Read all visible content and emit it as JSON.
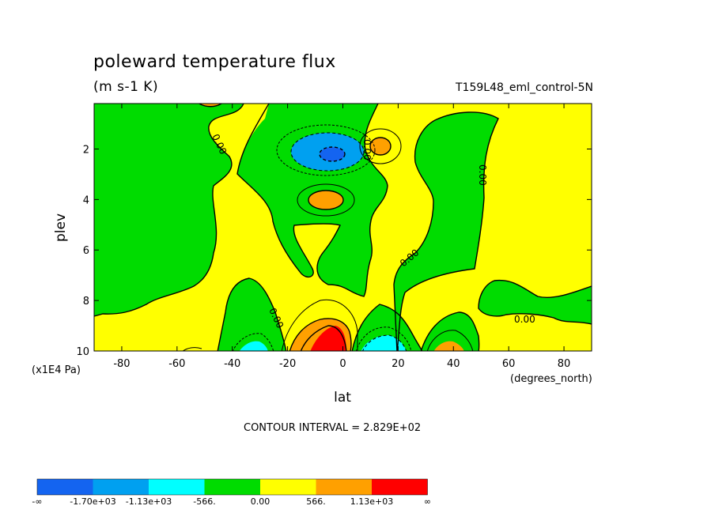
{
  "chart_data": {
    "type": "heatmap",
    "title": "poleward temperature flux",
    "units": "(m s-1 K)",
    "run_id": "T159L48_eml_control-5N",
    "xlabel": "lat",
    "x_units": "(degrees_north)",
    "ylabel": "plev",
    "y_units": "(x1E4 Pa)",
    "xlim": [
      -90,
      90
    ],
    "ylim": [
      10,
      0.2
    ],
    "x_ticks": [
      -80,
      -60,
      -40,
      -20,
      0,
      20,
      40,
      60,
      80
    ],
    "x_tick_labels": [
      "-80",
      "-60",
      "-40",
      "-20",
      "0",
      "20",
      "40",
      "60",
      "80"
    ],
    "y_ticks": [
      2,
      4,
      6,
      8,
      10
    ],
    "y_tick_labels": [
      "2",
      "4",
      "6",
      "8",
      "10"
    ],
    "contour_interval": "CONTOUR INTERVAL = 2.829E+02",
    "zero_contour_label": "0.00",
    "colorbar": {
      "colors": [
        "#1464f0",
        "#00a0f0",
        "#00ffff",
        "#00dc00",
        "#ffff00",
        "#ffa000",
        "#ff0000"
      ],
      "labels": [
        "-∞",
        "-1.70e+03",
        "-1.13e+03",
        "-566.",
        "0.00",
        "566.",
        "1.13e+03",
        "∞"
      ]
    },
    "regions": [
      {
        "level": "0 to 566",
        "color": "#ffff00",
        "description": "background"
      },
      {
        "level": "-566 to 0",
        "color": "#00dc00",
        "lat": [
          -90,
          -55
        ],
        "plev": [
          0.2,
          7.5
        ]
      },
      {
        "level": "-1.70e+03 to -1.13e+03",
        "color": "#00a0f0",
        "lat": [
          -12,
          -1
        ],
        "plev": [
          1.5,
          2.6
        ]
      },
      {
        "level": "< -1.70e+03",
        "color": "#1464f0",
        "lat": [
          -6,
          -2
        ],
        "plev": [
          1.8,
          2.3
        ]
      },
      {
        "level": "566 to 1.13e+03",
        "color": "#ffa000",
        "lat": [
          -10,
          0
        ],
        "plev": [
          3.7,
          4.3
        ]
      },
      {
        "level": "566 to 1.13e+03",
        "color": "#ffa000",
        "lat": [
          10,
          16
        ],
        "plev": [
          1.6,
          2.3
        ]
      },
      {
        "level": "> 1.13e+03",
        "color": "#ff0000",
        "lat": [
          -8,
          0
        ],
        "plev": [
          9.0,
          10
        ]
      },
      {
        "level": "-1.13e+03 to -566",
        "color": "#00ffff",
        "lat": [
          -35,
          -27
        ],
        "plev": [
          9.6,
          10
        ]
      },
      {
        "level": "-1.13e+03 to -566",
        "color": "#00ffff",
        "lat": [
          8,
          22
        ],
        "plev": [
          9.4,
          10
        ]
      },
      {
        "level": "566 to 1.13e+03",
        "color": "#ffa000",
        "lat": [
          35,
          43
        ],
        "plev": [
          9.6,
          10
        ]
      }
    ]
  }
}
